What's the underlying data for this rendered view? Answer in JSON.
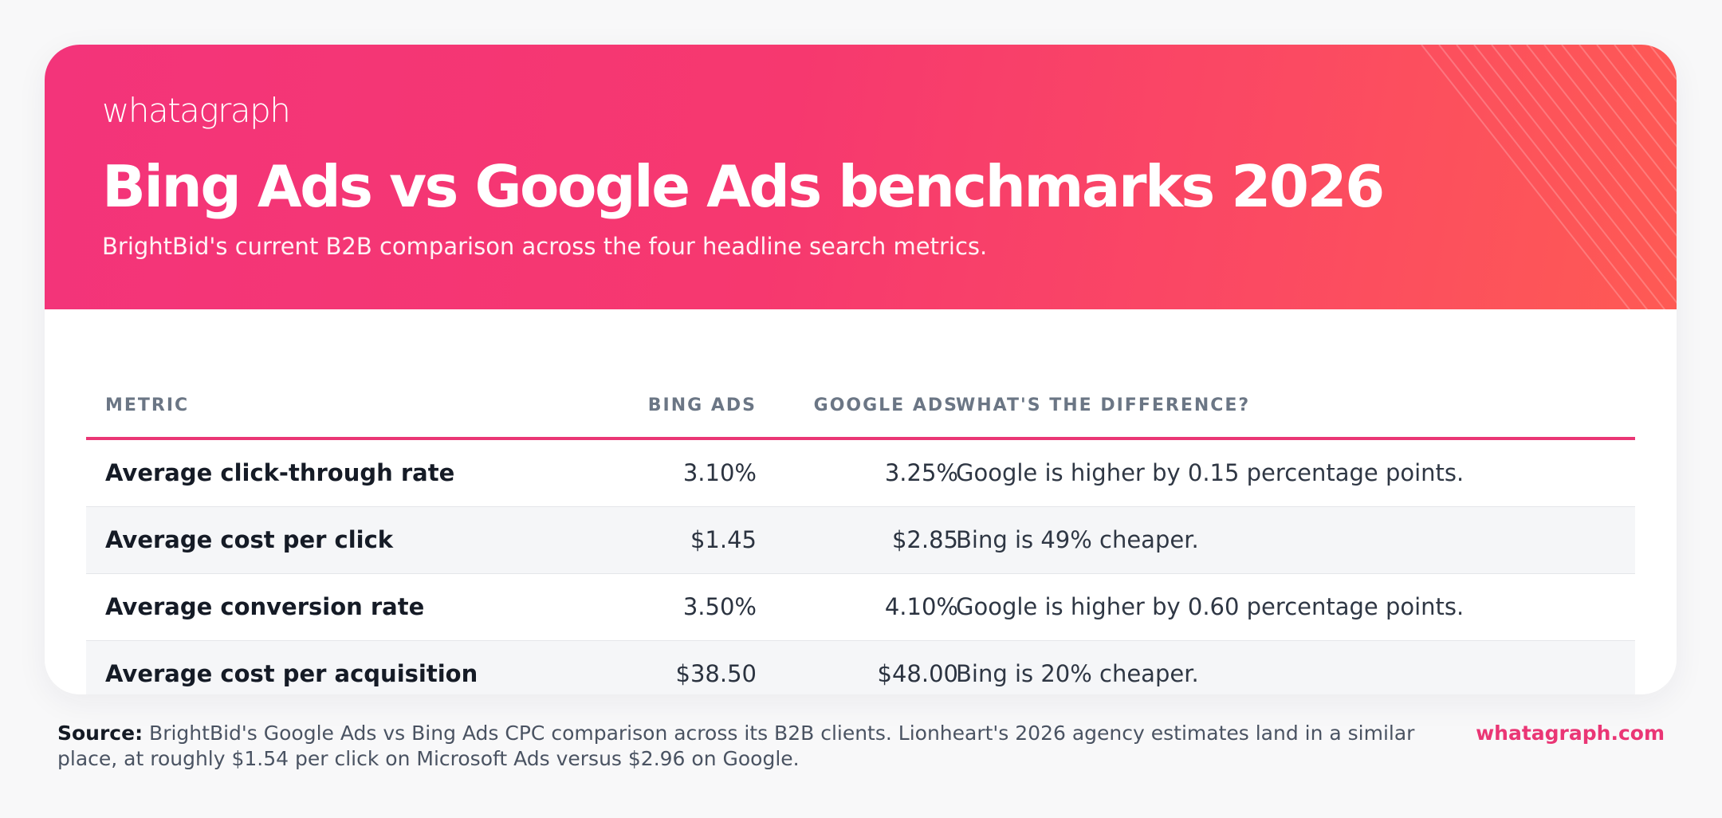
{
  "brand": {
    "logo_text": "whatagraph",
    "site": "whatagraph.com",
    "accent_color": "#ea3675",
    "hero_gradient": [
      "#f3347a",
      "#fe5a54"
    ]
  },
  "header": {
    "title": "Bing Ads vs Google Ads benchmarks 2026",
    "subtitle": "BrightBid's current B2B comparison across the four headline search metrics."
  },
  "table": {
    "columns": {
      "metric": "METRIC",
      "bing": "BING ADS",
      "google": "GOOGLE ADS",
      "difference": "WHAT'S THE DIFFERENCE?"
    },
    "rows": [
      {
        "metric": "Average click-through rate",
        "bing": "3.10%",
        "google": "3.25%",
        "difference": "Google is higher by 0.15 percentage points."
      },
      {
        "metric": "Average cost per click",
        "bing": "$1.45",
        "google": "$2.85",
        "difference": "Bing is 49% cheaper."
      },
      {
        "metric": "Average conversion rate",
        "bing": "3.50%",
        "google": "4.10%",
        "difference": "Google is higher by 0.60 percentage points."
      },
      {
        "metric": "Average cost per acquisition",
        "bing": "$38.50",
        "google": "$48.00",
        "difference": "Bing is 20% cheaper."
      }
    ]
  },
  "footer": {
    "source_label": "Source:",
    "source_text": "BrightBid's Google Ads vs Bing Ads CPC comparison across its B2B clients. Lionheart's 2026 agency estimates land in a similar place, at roughly $1.54 per click on Microsoft Ads versus $2.96 on Google."
  }
}
